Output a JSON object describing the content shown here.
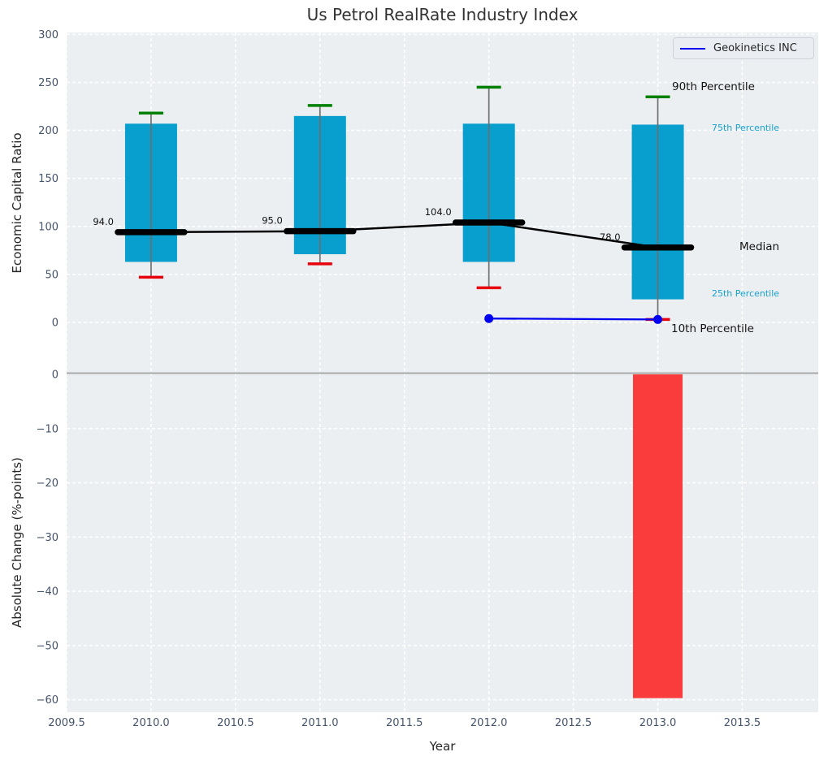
{
  "title": "Us Petrol RealRate Industry Index",
  "legend": {
    "label": "Geokinetics INC",
    "line_color": "#0000f0"
  },
  "annotations": {
    "p90": "90th Percentile",
    "p75": "75th Percentile",
    "median": "Median",
    "p25": "25th Percentile",
    "p10": "10th Percentile"
  },
  "colors": {
    "box": "#089fce",
    "cyan_text": "#18a1cd",
    "cap_top": "#008000",
    "cap_bottom": "#e8000b",
    "whisker": "#6e6e6e",
    "median_line": "#000000",
    "company_line": "#0000f0",
    "negative_bar": "#fa3c3c",
    "panel_bg": "#eceff2",
    "grid": "#ffffff",
    "tick_text": "#44546a",
    "zero_line": "#a9a9a9"
  },
  "chart_data": [
    {
      "type": "boxplot",
      "panel": "top",
      "title": "Us Petrol RealRate Industry Index",
      "ylabel": "Economic Capital Ratio",
      "ylim": [
        -52.5,
        302
      ],
      "ytick_values": [
        0,
        50,
        100,
        150,
        200,
        250,
        300
      ],
      "ytick_labels": [
        "0",
        "50",
        "100",
        "150",
        "200",
        "250",
        "300"
      ],
      "grid": true,
      "legend_position": "upper right",
      "categories": [
        2010,
        2011,
        2012,
        2013
      ],
      "series": [
        {
          "name": "90th Percentile",
          "values": [
            218,
            226,
            245,
            235
          ]
        },
        {
          "name": "75th Percentile",
          "values": [
            207,
            215,
            207,
            206
          ]
        },
        {
          "name": "Median",
          "values": [
            94.0,
            95.0,
            104.0,
            78.0
          ]
        },
        {
          "name": "25th Percentile",
          "values": [
            63,
            71,
            63,
            24
          ]
        },
        {
          "name": "10th Percentile",
          "values": [
            47,
            61,
            36,
            3
          ]
        }
      ],
      "median_labels": [
        "94.0",
        "95.0",
        "104.0",
        "78.0"
      ],
      "company_series": {
        "name": "Geokinetics INC",
        "x": [
          2012,
          2013
        ],
        "y": [
          4,
          3
        ]
      }
    },
    {
      "type": "bar",
      "panel": "bottom",
      "ylabel": "Absolute Change (%-points)",
      "xlabel": "Year",
      "ylim": [
        -62.3,
        0.3
      ],
      "ytick_values": [
        0,
        -10,
        -20,
        -30,
        -40,
        -50,
        -60
      ],
      "ytick_labels": [
        "0",
        "−10",
        "−20",
        "−30",
        "−40",
        "−50",
        "−60"
      ],
      "xlim": [
        2009.5,
        2013.95
      ],
      "xtick_values": [
        2009.5,
        2010.0,
        2010.5,
        2011.0,
        2011.5,
        2012.0,
        2012.5,
        2013.0,
        2013.5
      ],
      "xtick_labels": [
        "2009.5",
        "2010.0",
        "2010.5",
        "2011.0",
        "2011.5",
        "2012.0",
        "2012.5",
        "2013.0",
        "2013.5"
      ],
      "grid": true,
      "bars": [
        {
          "x": 2013,
          "value": -59.7
        }
      ]
    }
  ]
}
